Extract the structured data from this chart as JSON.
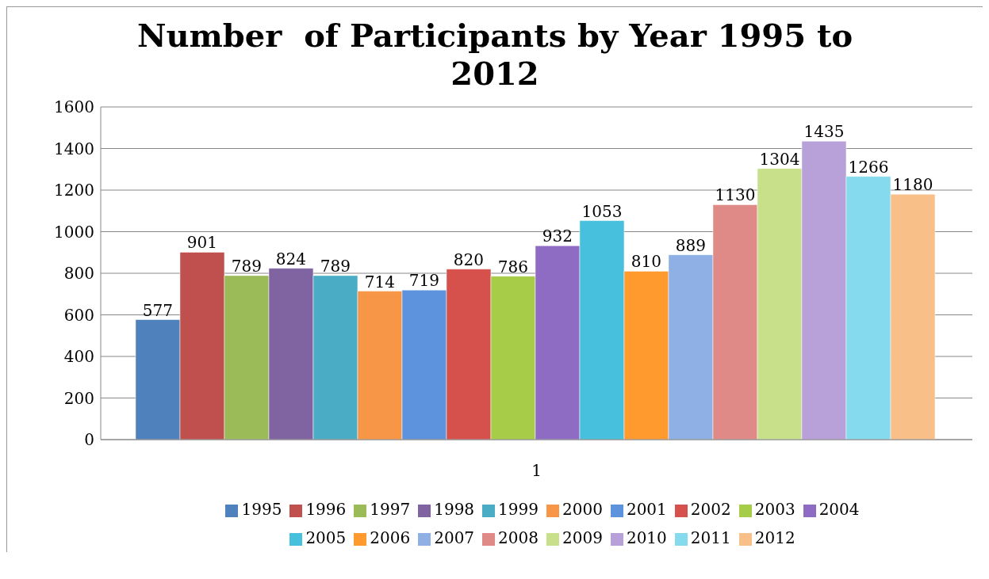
{
  "chart_data": {
    "type": "bar",
    "title": "Number  of Participants by Year 1995 to 2012",
    "categories": [
      "1"
    ],
    "series": [
      {
        "name": "1995",
        "color": "#4f81bd",
        "values": [
          577
        ]
      },
      {
        "name": "1996",
        "color": "#c0504d",
        "values": [
          901
        ]
      },
      {
        "name": "1997",
        "color": "#9bbb59",
        "values": [
          789
        ]
      },
      {
        "name": "1998",
        "color": "#8064a2",
        "values": [
          824
        ]
      },
      {
        "name": "1999",
        "color": "#4bacc6",
        "values": [
          789
        ]
      },
      {
        "name": "2000",
        "color": "#f79646",
        "values": [
          714
        ]
      },
      {
        "name": "2001",
        "color": "#5c93dc",
        "values": [
          719
        ]
      },
      {
        "name": "2002",
        "color": "#d6504c",
        "values": [
          820
        ]
      },
      {
        "name": "2003",
        "color": "#a6cc48",
        "values": [
          786
        ]
      },
      {
        "name": "2004",
        "color": "#8f6cc4",
        "values": [
          932
        ]
      },
      {
        "name": "2005",
        "color": "#46c0dc",
        "values": [
          1053
        ]
      },
      {
        "name": "2006",
        "color": "#ff9a2e",
        "values": [
          810
        ]
      },
      {
        "name": "2007",
        "color": "#8eb0e4",
        "values": [
          889
        ]
      },
      {
        "name": "2008",
        "color": "#e08a88",
        "values": [
          1130
        ]
      },
      {
        "name": "2009",
        "color": "#c8e08a",
        "values": [
          1304
        ]
      },
      {
        "name": "2010",
        "color": "#b8a0d8",
        "values": [
          1435
        ]
      },
      {
        "name": "2011",
        "color": "#86daee",
        "values": [
          1266
        ]
      },
      {
        "name": "2012",
        "color": "#f8bf88",
        "values": [
          1180
        ]
      }
    ],
    "ylim": [
      0,
      1600
    ],
    "yticks": [
      0,
      200,
      400,
      600,
      800,
      1000,
      1200,
      1400,
      1600
    ],
    "grid": "y",
    "legend": "bottom",
    "data_labels": true
  }
}
